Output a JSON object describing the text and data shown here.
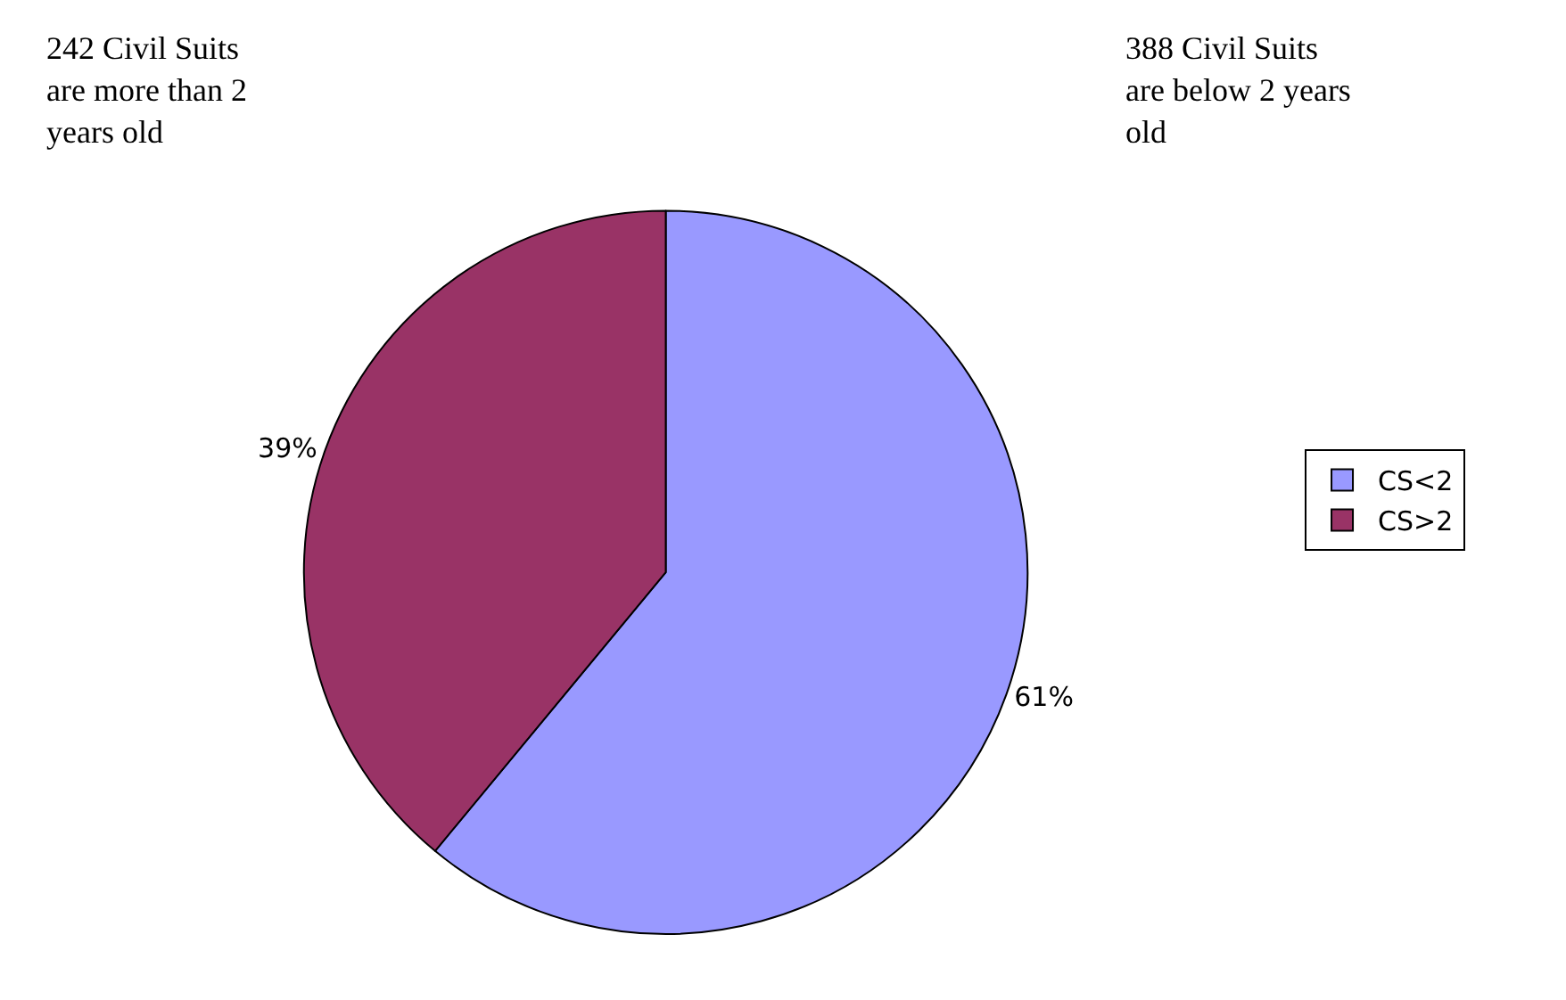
{
  "chart_data": {
    "type": "pie",
    "categories": [
      "CS<2",
      "CS>2"
    ],
    "values": [
      61,
      39
    ],
    "value_labels": [
      "61%",
      "39%"
    ],
    "colors": [
      "#9999ff",
      "#993366"
    ],
    "legend": "right",
    "annotations": [
      "242 Civil Suits are more than 2 years old",
      "388 Civil Suits are below 2 years old"
    ]
  }
}
